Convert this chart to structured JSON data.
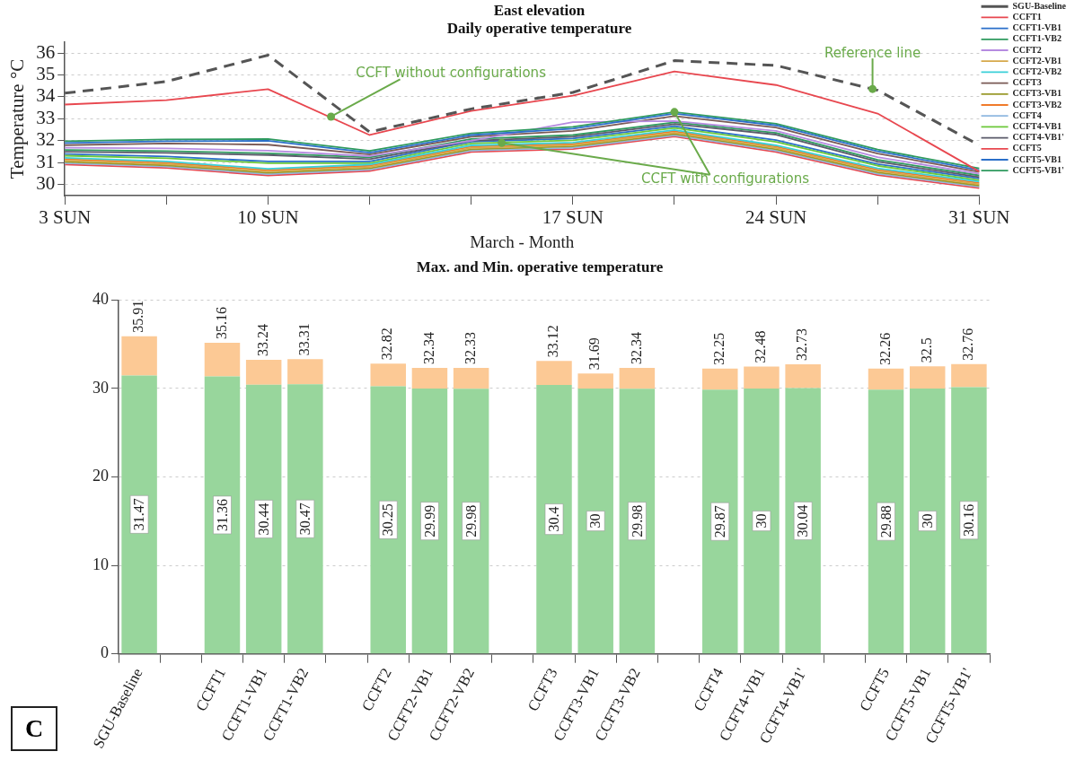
{
  "chart_data": [
    {
      "type": "line",
      "title": "East elevation",
      "subtitle": "Daily operative temperature",
      "xlabel": "March - Month",
      "ylabel": "Temperature °C",
      "categories": [
        "3 SUN",
        null,
        "10 SUN",
        null,
        null,
        "17 SUN",
        null,
        "24 SUN",
        null,
        "31 SUN"
      ],
      "ylim": [
        29.5,
        36.5
      ],
      "yticks": [
        30,
        31,
        32,
        33,
        34,
        35,
        36
      ],
      "grid": "y",
      "legend": "right",
      "annotations": [
        {
          "text": "CCFT without configurations",
          "y": 33.1
        },
        {
          "text": "Reference line",
          "y": 34.36
        },
        {
          "text": "CCFT with configurations",
          "y": 31.9
        }
      ],
      "series": [
        {
          "name": "SGU-Baseline",
          "color": "#555555",
          "line_style": "dashed",
          "values": [
            34.17,
            34.7,
            35.9,
            32.4,
            33.45,
            34.2,
            35.65,
            35.43,
            34.3,
            31.8
          ]
        },
        {
          "name": "CCFT1",
          "color": "#e8474f",
          "values": [
            33.65,
            33.85,
            34.35,
            32.26,
            33.36,
            34.05,
            35.16,
            34.54,
            33.24,
            30.6
          ]
        },
        {
          "name": "CCFT1-VB1",
          "color": "#2a6fc9",
          "values": [
            31.9,
            31.98,
            32.0,
            31.46,
            32.26,
            32.55,
            33.24,
            32.7,
            31.52,
            30.66
          ]
        },
        {
          "name": "CCFT1-VB2",
          "color": "#2e9a5e",
          "values": [
            31.98,
            32.06,
            32.08,
            31.54,
            32.34,
            32.63,
            33.31,
            32.78,
            31.6,
            30.74
          ]
        },
        {
          "name": "CCFT2",
          "color": "#b68be0",
          "values": [
            31.68,
            31.65,
            31.55,
            31.3,
            32.0,
            32.85,
            32.9,
            32.45,
            31.25,
            30.5
          ]
        },
        {
          "name": "CCFT2-VB1",
          "color": "#d6a84a",
          "values": [
            31.1,
            30.94,
            30.6,
            30.8,
            31.67,
            31.8,
            32.37,
            31.67,
            30.62,
            30.02
          ]
        },
        {
          "name": "CCFT2-VB2",
          "color": "#3ad0d8",
          "values": [
            31.22,
            31.06,
            30.72,
            30.92,
            31.79,
            31.92,
            32.49,
            31.79,
            30.74,
            30.14
          ]
        },
        {
          "name": "CCFT3",
          "color": "#7a5a55",
          "values": [
            31.8,
            31.88,
            31.82,
            31.38,
            32.18,
            32.45,
            33.12,
            32.6,
            31.42,
            30.58
          ]
        },
        {
          "name": "CCFT3-VB1",
          "color": "#9a9a2a",
          "values": [
            31.04,
            30.88,
            30.54,
            30.74,
            31.61,
            31.74,
            32.31,
            31.61,
            30.56,
            29.96
          ]
        },
        {
          "name": "CCFT3-VB2",
          "color": "#f07a2a",
          "values": [
            31.16,
            31.0,
            30.66,
            30.86,
            31.73,
            31.86,
            32.43,
            31.73,
            30.68,
            30.08
          ]
        },
        {
          "name": "CCFT4",
          "color": "#8fb8e0",
          "values": [
            30.98,
            30.82,
            30.48,
            30.68,
            31.55,
            31.68,
            32.25,
            31.55,
            30.5,
            29.9
          ]
        },
        {
          "name": "CCFT4-VB1",
          "color": "#6cc83a",
          "values": [
            31.32,
            31.2,
            30.98,
            30.98,
            31.88,
            32.02,
            32.58,
            31.95,
            30.86,
            30.2
          ]
        },
        {
          "name": "CCFT4-VB1'",
          "color": "#5a5a6a",
          "values": [
            31.5,
            31.45,
            31.35,
            31.16,
            32.0,
            32.18,
            32.76,
            32.28,
            31.05,
            30.34
          ]
        },
        {
          "name": "CCFT5",
          "color": "#e8474f",
          "values": [
            30.92,
            30.76,
            30.42,
            30.62,
            31.49,
            31.62,
            32.19,
            31.49,
            30.44,
            29.84
          ]
        },
        {
          "name": "CCFT5-VB1",
          "color": "#2a6fc9",
          "values": [
            31.4,
            31.28,
            31.06,
            31.06,
            31.96,
            32.1,
            32.66,
            32.03,
            30.94,
            30.28
          ]
        },
        {
          "name": "CCFT5-VB1'",
          "color": "#2e9a5e",
          "values": [
            31.58,
            31.53,
            31.43,
            31.24,
            32.08,
            32.26,
            32.84,
            32.36,
            31.13,
            30.42
          ]
        }
      ]
    },
    {
      "type": "bar",
      "title": "Max. and Min. operative temperature",
      "stacked": true,
      "categories": [
        "SGU-Baseline",
        null,
        "CCFT1",
        "CCFT1-VB1",
        "CCFT1-VB2",
        null,
        "CCFT2",
        "CCFT2-VB1",
        "CCFT2-VB2",
        null,
        "CCFT3",
        "CCFT3-VB1",
        "CCFT3-VB2",
        null,
        "CCFT4",
        "CCFT4-VB1",
        "CCFT4-VB1'",
        null,
        "CCFT5",
        "CCFT5-VB1",
        "CCFT5-VB1'"
      ],
      "totals": [
        "35.91",
        null,
        "35.16",
        "33.24",
        "33.31",
        null,
        "32.82",
        "32.34",
        "32.33",
        null,
        "33.12",
        "31.69",
        "32.34",
        null,
        "32.25",
        "32.48",
        "32.73",
        null,
        "32.26",
        "32.5",
        "32.76"
      ],
      "ylim": [
        0,
        40
      ],
      "yticks": [
        0,
        10,
        20,
        30,
        40
      ],
      "grid": "y",
      "annotations": [
        "C"
      ],
      "series": [
        {
          "color": "#98d69c",
          "values": [
            31.47,
            null,
            31.36,
            30.44,
            30.47,
            null,
            30.25,
            29.99,
            29.98,
            null,
            30.4,
            30,
            29.98,
            null,
            29.87,
            30,
            30.04,
            null,
            29.88,
            30,
            30.16
          ],
          "value_labels": [
            "31.47",
            null,
            "31.36",
            "30.44",
            "30.47",
            null,
            "30.25",
            "29.99",
            "29.98",
            null,
            "30.4",
            "30",
            "29.98",
            null,
            "29.87",
            "30",
            "30.04",
            null,
            "29.88",
            "30",
            "30.16"
          ]
        },
        {
          "color": "#fcc995",
          "values": [
            4.44,
            null,
            3.8,
            2.8,
            2.84,
            null,
            2.57,
            2.35,
            2.35,
            null,
            2.72,
            1.69,
            2.36,
            null,
            2.38,
            2.48,
            2.69,
            null,
            2.38,
            2.5,
            2.6
          ]
        }
      ]
    }
  ]
}
